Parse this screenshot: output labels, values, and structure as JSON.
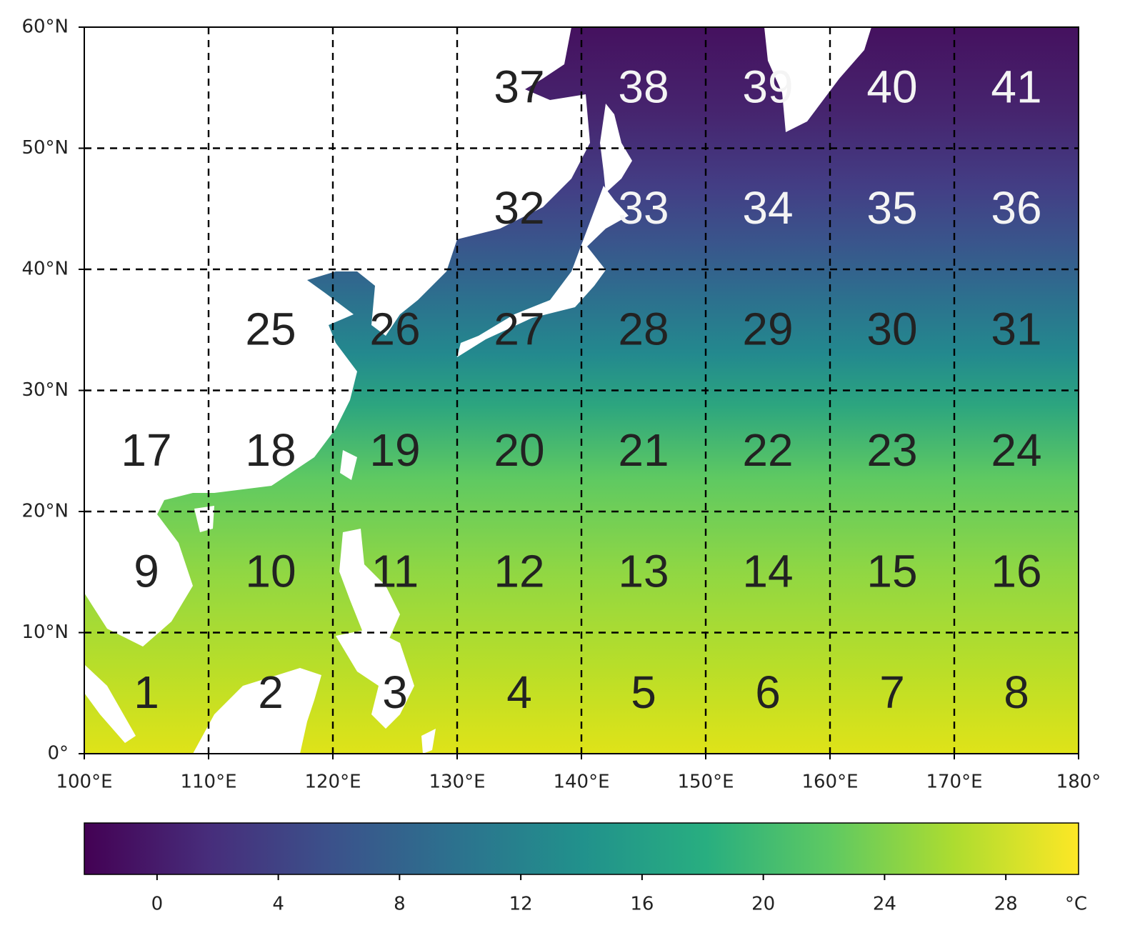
{
  "map": {
    "xlim": [
      100,
      180
    ],
    "ylim": [
      0,
      60
    ],
    "xticks": [
      {
        "value": 100,
        "label": "100°E"
      },
      {
        "value": 110,
        "label": "110°E"
      },
      {
        "value": 120,
        "label": "120°E"
      },
      {
        "value": 130,
        "label": "130°E"
      },
      {
        "value": 140,
        "label": "140°E"
      },
      {
        "value": 150,
        "label": "150°E"
      },
      {
        "value": 160,
        "label": "160°E"
      },
      {
        "value": 170,
        "label": "170°E"
      },
      {
        "value": 180,
        "label": "180°"
      }
    ],
    "yticks": [
      {
        "value": 0,
        "label": "0°"
      },
      {
        "value": 10,
        "label": "10°N"
      },
      {
        "value": 20,
        "label": "20°N"
      },
      {
        "value": 30,
        "label": "30°N"
      },
      {
        "value": 40,
        "label": "40°N"
      },
      {
        "value": 50,
        "label": "50°N"
      },
      {
        "value": 60,
        "label": "60°N"
      }
    ],
    "regions": [
      {
        "lat": [
          0,
          10
        ],
        "lon_start": 100,
        "labels": [
          "1",
          "2",
          "3",
          "4",
          "5",
          "6",
          "7",
          "8"
        ]
      },
      {
        "lat": [
          10,
          20
        ],
        "lon_start": 100,
        "labels": [
          "9",
          "10",
          "11",
          "12",
          "13",
          "14",
          "15",
          "16"
        ]
      },
      {
        "lat": [
          20,
          30
        ],
        "lon_start": 100,
        "labels": [
          "17",
          "18",
          "19",
          "20",
          "21",
          "22",
          "23",
          "24"
        ]
      },
      {
        "lat": [
          30,
          40
        ],
        "lon_start": 110,
        "labels": [
          "25",
          "26",
          "27",
          "28",
          "29",
          "30",
          "31"
        ]
      },
      {
        "lat": [
          40,
          50
        ],
        "lon_start": 130,
        "labels": [
          "32",
          "33",
          "34",
          "35",
          "36"
        ]
      },
      {
        "lat": [
          50,
          60
        ],
        "lon_start": 130,
        "labels": [
          "37",
          "38",
          "39",
          "40",
          "41"
        ]
      }
    ],
    "colorbar": {
      "lim": [
        -2.4,
        30.4
      ],
      "ticks": [
        0,
        4,
        8,
        12,
        16,
        20,
        24,
        28
      ],
      "unit": "°C"
    }
  }
}
